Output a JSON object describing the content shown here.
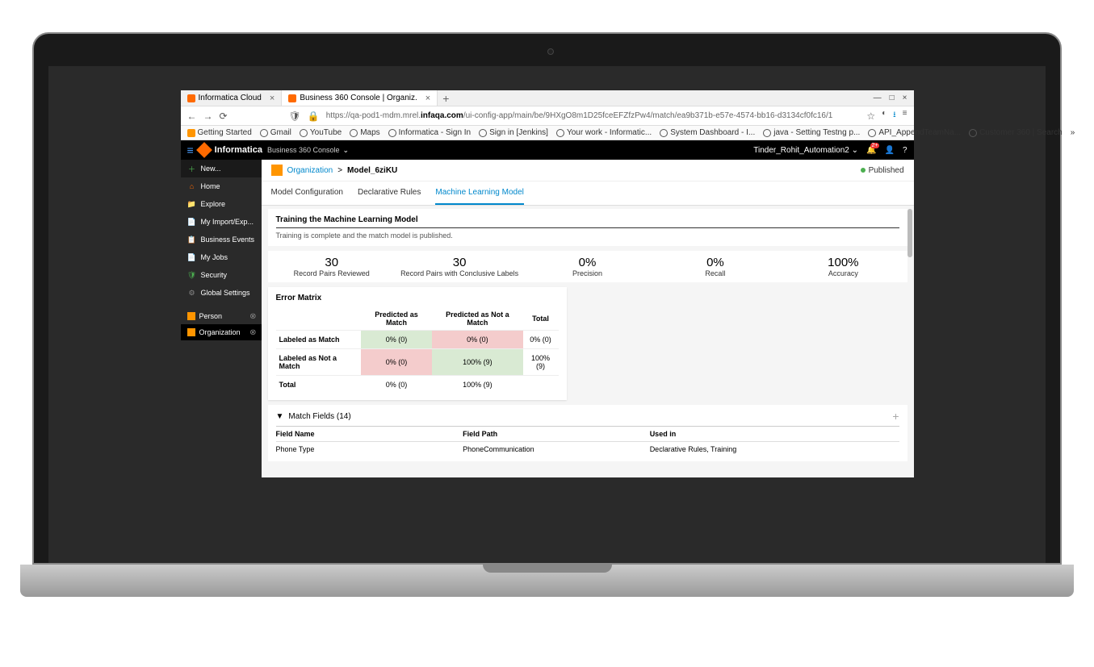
{
  "browser": {
    "tabs": [
      {
        "title": "Informatica Cloud",
        "active": false
      },
      {
        "title": "Business 360 Console | Organiz.",
        "active": true
      }
    ],
    "url_prefix": "https://qa-pod1-mdm.mrel.",
    "url_host": "infaqa.com",
    "url_path": "/ui-config-app/main/be/9HXgO8m1D25fceEFZfzPw4/match/ea9b371b-e57e-4574-bb16-d3134cf0fc16/1",
    "bookmarks": [
      "Getting Started",
      "Gmail",
      "YouTube",
      "Maps",
      "Informatica - Sign In",
      "Sign in [Jenkins]",
      "Your work - Informatic...",
      "System Dashboard - I...",
      "java - Setting Testng p...",
      "API_AppendTeamNa...",
      "Customer 360 | Search"
    ]
  },
  "header": {
    "brand": "Informatica",
    "console": "Business 360 Console",
    "user": "Tinder_Rohit_Automation2",
    "badge": "2+"
  },
  "sidebar": {
    "items": [
      {
        "icon": "plus",
        "label": "New...",
        "cls": "sb-new",
        "color": "#4caf50"
      },
      {
        "icon": "home",
        "label": "Home",
        "color": "#ff6a00"
      },
      {
        "icon": "folder",
        "label": "Explore",
        "color": "#ffb300"
      },
      {
        "icon": "import",
        "label": "My Import/Exp...",
        "color": "#4a9eff"
      },
      {
        "icon": "events",
        "label": "Business Events",
        "color": "#4a9eff"
      },
      {
        "icon": "jobs",
        "label": "My Jobs",
        "color": "#4a9eff"
      },
      {
        "icon": "shield",
        "label": "Security",
        "color": "#4caf50"
      },
      {
        "icon": "gear",
        "label": "Global Settings",
        "color": "#888"
      }
    ],
    "tabs": [
      {
        "label": "Person",
        "active": false
      },
      {
        "label": "Organization",
        "active": true
      }
    ]
  },
  "breadcrumb": {
    "org": "Organization",
    "sep": ">",
    "model": "Model_6ziKU",
    "status": "Published"
  },
  "pageTabs": [
    "Model Configuration",
    "Declarative Rules",
    "Machine Learning Model"
  ],
  "activeTab": 2,
  "training": {
    "title": "Training the Machine Learning Model",
    "status": "Training is complete and the match model is published."
  },
  "stats": [
    {
      "value": "30",
      "label": "Record Pairs Reviewed"
    },
    {
      "value": "30",
      "label": "Record Pairs with Conclusive Labels"
    },
    {
      "value": "0%",
      "label": "Precision"
    },
    {
      "value": "0%",
      "label": "Recall"
    },
    {
      "value": "100%",
      "label": "Accuracy"
    }
  ],
  "matrix": {
    "title": "Error Matrix",
    "cols": [
      "",
      "Predicted as Match",
      "Predicted as Not a Match",
      "Total"
    ],
    "rows": [
      {
        "label": "Labeled as Match",
        "cells": [
          {
            "v": "0% (0)",
            "c": "g"
          },
          {
            "v": "0% (0)",
            "c": "r"
          },
          {
            "v": "0% (0)",
            "c": ""
          }
        ]
      },
      {
        "label": "Labeled as Not a Match",
        "cells": [
          {
            "v": "0% (0)",
            "c": "r"
          },
          {
            "v": "100% (9)",
            "c": "g"
          },
          {
            "v": "100% (9)",
            "c": ""
          }
        ]
      },
      {
        "label": "Total",
        "cells": [
          {
            "v": "0% (0)",
            "c": ""
          },
          {
            "v": "100% (9)",
            "c": ""
          },
          {
            "v": "",
            "c": ""
          }
        ]
      }
    ]
  },
  "matchFields": {
    "title": "Match Fields (14)",
    "columns": [
      "Field Name",
      "Field Path",
      "Used in"
    ],
    "rows": [
      {
        "name": "Phone Type",
        "path": "PhoneCommunication",
        "used": "Declarative Rules, Training"
      }
    ]
  },
  "colors": {
    "accent": "#0088cc",
    "green_cell": "#d9ead3",
    "red_cell": "#f4cccc",
    "published": "#4caf50"
  }
}
